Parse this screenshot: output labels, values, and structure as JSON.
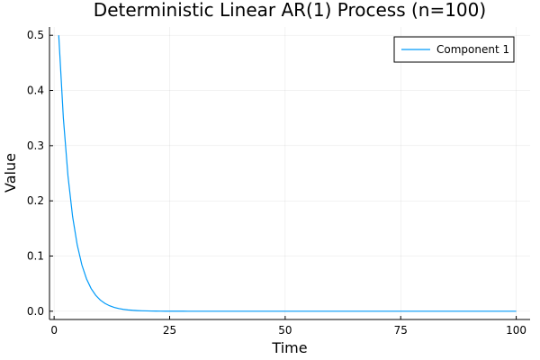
{
  "chart_data": {
    "type": "line",
    "title": "Deterministic Linear AR(1) Process (n=100)",
    "xlabel": "Time",
    "ylabel": "Value",
    "xlim": [
      -1,
      103
    ],
    "ylim": [
      -0.015,
      0.515
    ],
    "x_ticks": [
      0,
      25,
      50,
      75,
      100
    ],
    "x_tick_labels": [
      "0",
      "25",
      "50",
      "75",
      "100"
    ],
    "y_ticks": [
      0.0,
      0.1,
      0.2,
      0.3,
      0.4,
      0.5
    ],
    "y_tick_labels": [
      "0.0",
      "0.1",
      "0.2",
      "0.3",
      "0.4",
      "0.5"
    ],
    "grid": true,
    "legend_position": "top-right",
    "series": [
      {
        "name": "Component 1",
        "color": "#009af9",
        "x": [
          1,
          2,
          3,
          4,
          5,
          6,
          7,
          8,
          9,
          10,
          11,
          12,
          13,
          14,
          15,
          16,
          17,
          18,
          19,
          20,
          21,
          22,
          23,
          24,
          25,
          26,
          27,
          28,
          29,
          30,
          31,
          32,
          33,
          34,
          35,
          36,
          37,
          38,
          39,
          40,
          41,
          42,
          43,
          44,
          45,
          46,
          47,
          48,
          49,
          50,
          51,
          52,
          53,
          54,
          55,
          56,
          57,
          58,
          59,
          60,
          61,
          62,
          63,
          64,
          65,
          66,
          67,
          68,
          69,
          70,
          71,
          72,
          73,
          74,
          75,
          76,
          77,
          78,
          79,
          80,
          81,
          82,
          83,
          84,
          85,
          86,
          87,
          88,
          89,
          90,
          91,
          92,
          93,
          94,
          95,
          96,
          97,
          98,
          99,
          100
        ],
        "values": [
          0.5,
          0.35,
          0.245,
          0.1715,
          0.12005,
          0.084035,
          0.0588245,
          0.04117715,
          0.028824,
          0.0201768,
          0.01412376,
          0.00988663,
          0.00692064,
          0.00484445,
          0.00339111,
          0.00237378,
          0.00166165,
          0.00116315,
          0.00081421,
          0.00056994,
          0.00039896,
          0.00027927,
          0.00019549,
          0.00013684,
          9.58e-05,
          6.71e-05,
          4.69e-05,
          3.29e-05,
          2.3e-05,
          1.61e-05,
          1.13e-05,
          7.9e-06,
          5.5e-06,
          3.9e-06,
          2.7e-06,
          1.9e-06,
          1.3e-06,
          9e-07,
          7e-07,
          5e-07,
          3e-07,
          2e-07,
          2e-07,
          1e-07,
          1e-07,
          1e-07,
          0,
          0,
          0,
          0,
          0,
          0,
          0,
          0,
          0,
          0,
          0,
          0,
          0,
          0,
          0,
          0,
          0,
          0,
          0,
          0,
          0,
          0,
          0,
          0,
          0,
          0,
          0,
          0,
          0,
          0,
          0,
          0,
          0,
          0,
          0,
          0,
          0,
          0,
          0,
          0,
          0,
          0,
          0,
          0,
          0,
          0,
          0,
          0,
          0,
          0,
          0,
          0,
          0,
          0
        ]
      }
    ]
  }
}
